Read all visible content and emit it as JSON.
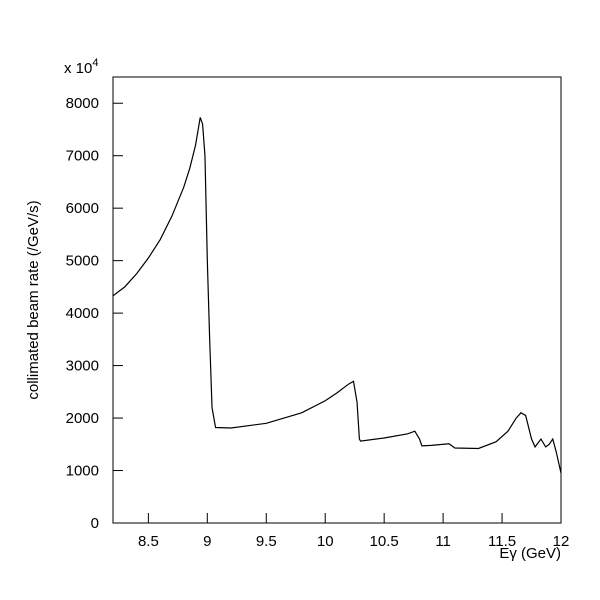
{
  "chart_data": {
    "type": "line",
    "x_label": "Eγ (GeV)",
    "y_label": "collimated beam rate (/GeV/s)",
    "y_multiplier": {
      "base": "x 10",
      "exponent": "4"
    },
    "xlim": [
      8.2,
      12
    ],
    "ylim": [
      0,
      8500
    ],
    "xticks": [
      8.5,
      9,
      9.5,
      10,
      10.5,
      11,
      11.5,
      12
    ],
    "yticks": [
      0,
      1000,
      2000,
      3000,
      4000,
      5000,
      6000,
      7000,
      8000
    ],
    "grid": false,
    "series": [
      {
        "color": "#000000",
        "x": [
          8.2,
          8.3,
          8.4,
          8.5,
          8.6,
          8.7,
          8.8,
          8.85,
          8.9,
          8.94,
          8.96,
          8.98,
          9.0,
          9.02,
          9.04,
          9.07,
          9.2,
          9.5,
          9.8,
          10.0,
          10.1,
          10.2,
          10.24,
          10.27,
          10.29,
          10.3,
          10.5,
          10.7,
          10.76,
          10.8,
          10.82,
          10.9,
          11.05,
          11.1,
          11.3,
          11.45,
          11.55,
          11.62,
          11.66,
          11.7,
          11.75,
          11.78,
          11.83,
          11.87,
          11.9,
          11.93,
          11.96,
          12.0
        ],
        "values": [
          4330,
          4500,
          4750,
          5050,
          5400,
          5850,
          6400,
          6750,
          7200,
          7730,
          7600,
          7000,
          5000,
          3500,
          2200,
          1820,
          1810,
          1900,
          2100,
          2330,
          2480,
          2650,
          2700,
          2300,
          1600,
          1560,
          1620,
          1700,
          1750,
          1600,
          1470,
          1480,
          1510,
          1430,
          1420,
          1550,
          1750,
          2000,
          2100,
          2050,
          1600,
          1450,
          1600,
          1450,
          1500,
          1600,
          1350,
          950
        ]
      }
    ]
  }
}
